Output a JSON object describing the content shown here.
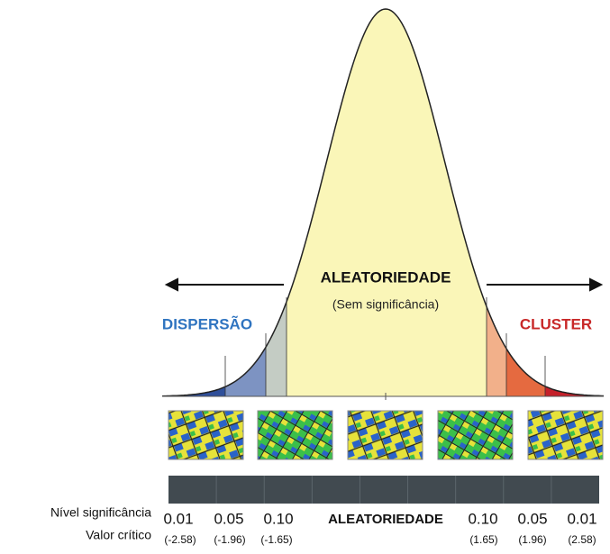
{
  "curve": {
    "center_label": "ALEATORIEDADE",
    "center_sublabel": "(Sem significância)",
    "left_label": "DISPERSÃO",
    "right_label": "CLUSTER"
  },
  "scale": {
    "row_labels": [
      "Nível significância",
      "Valor crítico"
    ],
    "levels": [
      "0.01",
      "0.05",
      "0.10",
      "ALEATORIEDADE",
      "0.10",
      "0.05",
      "0.01"
    ],
    "critical_values": [
      "(-2.58)",
      "(-1.96)",
      "(-1.65)",
      "(1.65)",
      "(1.96)",
      "(2.58)"
    ]
  }
}
